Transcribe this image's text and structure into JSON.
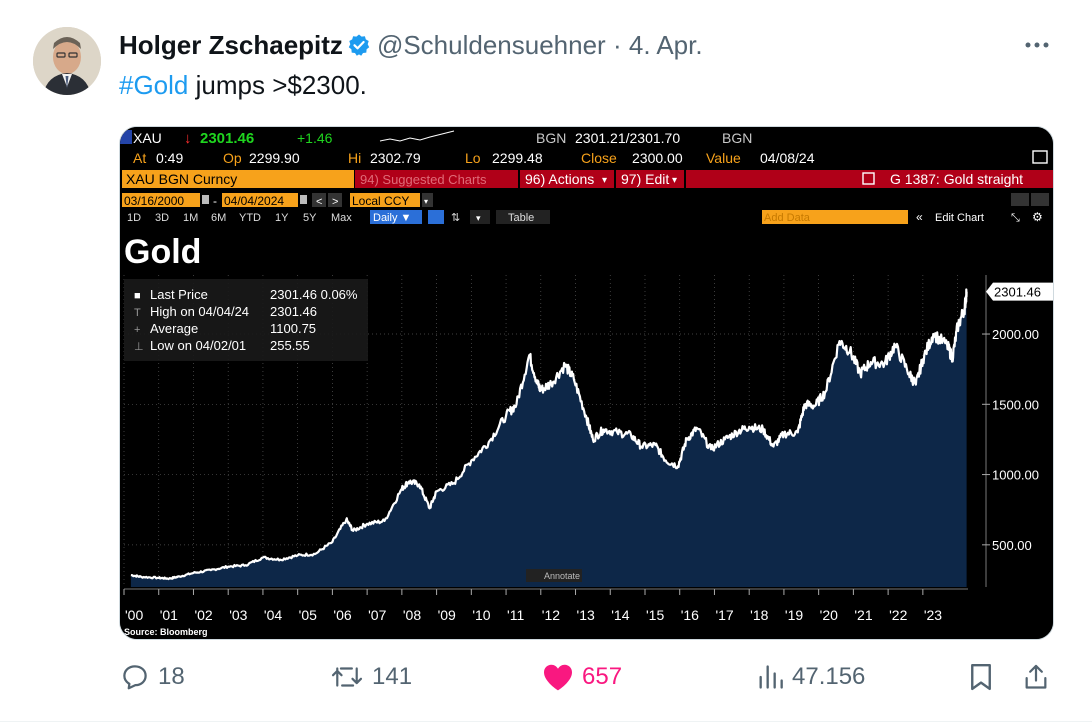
{
  "tweet": {
    "author_name": "Holger Zschaepitz",
    "handle": "@Schuldensuehner",
    "separator": "·",
    "date": "4. Apr.",
    "hashtag": "#Gold",
    "text": " jumps >$2300.",
    "more_icon": "more-icon",
    "verified_icon": "verified-badge-icon"
  },
  "terminal": {
    "ticker": "XAU",
    "last": "2301.46",
    "change": "+1.46",
    "bid_label": "BGN",
    "bid_ask": "2301.21/2301.70",
    "bid_label2": "BGN",
    "at_label": "At",
    "at_value": "0:49",
    "op_label": "Op",
    "op_value": "2299.90",
    "hi_label": "Hi",
    "hi_value": "2302.79",
    "lo_label": "Lo",
    "lo_value": "2299.48",
    "close_label": "Close",
    "close_value": "2300.00",
    "value_label": "Value",
    "value_value": "04/08/24",
    "security": "XAU BGN Curncy",
    "suggested": "94) Suggested Charts",
    "actions": "96) Actions",
    "edit": "97) Edit",
    "g_label": "G 1387: Gold straight",
    "start_date": "03/16/2000",
    "end_date": "04/04/2024",
    "ccy": "Local CCY",
    "periods": [
      "1D",
      "3D",
      "1M",
      "6M",
      "YTD",
      "1Y",
      "5Y",
      "Max"
    ],
    "frequency": "Daily ▼",
    "table": "Table",
    "add_data": "Add Data",
    "edit_chart": "Edit Chart",
    "chart_title": "Gold",
    "legend": [
      {
        "label": "Last Price",
        "value": "2301.46  0.06%"
      },
      {
        "label": "High on 04/04/24",
        "value": "2301.46"
      },
      {
        "label": "Average",
        "value": "1100.75"
      },
      {
        "label": "Low on 04/02/01",
        "value": "255.55"
      }
    ],
    "annotate": "Annotate",
    "source": "Source: Bloomberg",
    "colors": {
      "up": "#1fd51f",
      "down": "#ff2d2d",
      "orange": "#f7a21b",
      "red_bar": "#b00018",
      "fill": "#0d2748"
    }
  },
  "chart_data": {
    "type": "area",
    "title": "Gold",
    "x_tick_labels": [
      "'00",
      "'01",
      "'02",
      "'03",
      "'04",
      "'05",
      "'06",
      "'07",
      "'08",
      "'09",
      "'10",
      "'11",
      "'12",
      "'13",
      "'14",
      "'15",
      "'16",
      "'17",
      "'18",
      "'19",
      "'20",
      "'21",
      "'22",
      "'23"
    ],
    "y_ticks": [
      "500.00",
      "1000.00",
      "1500.00",
      "2000.00"
    ],
    "last_label": "2301.46",
    "ylim": [
      200,
      2420
    ],
    "x": [
      2000.2,
      2000.5,
      2001.0,
      2001.3,
      2001.6,
      2002.0,
      2002.5,
      2003.0,
      2003.5,
      2004.0,
      2004.5,
      2005.0,
      2005.5,
      2006.0,
      2006.4,
      2006.6,
      2007.0,
      2007.5,
      2008.0,
      2008.2,
      2008.5,
      2008.8,
      2009.0,
      2009.5,
      2010.0,
      2010.5,
      2011.0,
      2011.3,
      2011.67,
      2011.9,
      2012.0,
      2012.3,
      2012.7,
      2012.95,
      2013.3,
      2013.5,
      2013.8,
      2014.2,
      2014.6,
      2014.9,
      2015.3,
      2015.6,
      2015.95,
      2016.2,
      2016.5,
      2016.9,
      2017.3,
      2017.7,
      2018.0,
      2018.4,
      2018.7,
      2019.0,
      2019.4,
      2019.6,
      2019.9,
      2020.2,
      2020.6,
      2020.9,
      2021.2,
      2021.5,
      2021.9,
      2022.2,
      2022.6,
      2022.8,
      2023.0,
      2023.3,
      2023.7,
      2023.85,
      2024.0,
      2024.2,
      2024.26
    ],
    "values": [
      285,
      272,
      265,
      260,
      275,
      300,
      320,
      345,
      355,
      410,
      395,
      425,
      435,
      520,
      680,
      600,
      650,
      670,
      900,
      950,
      930,
      760,
      880,
      940,
      1100,
      1230,
      1420,
      1500,
      1850,
      1650,
      1600,
      1650,
      1780,
      1680,
      1420,
      1250,
      1320,
      1300,
      1280,
      1200,
      1210,
      1100,
      1060,
      1250,
      1330,
      1180,
      1250,
      1310,
      1340,
      1320,
      1200,
      1290,
      1300,
      1500,
      1490,
      1590,
      1950,
      1880,
      1720,
      1800,
      1790,
      1920,
      1720,
      1640,
      1820,
      2000,
      1920,
      1830,
      2050,
      2180,
      2301.46
    ]
  },
  "stats": {
    "replies": "18",
    "reposts": "141",
    "likes": "657",
    "views": "47.156"
  }
}
